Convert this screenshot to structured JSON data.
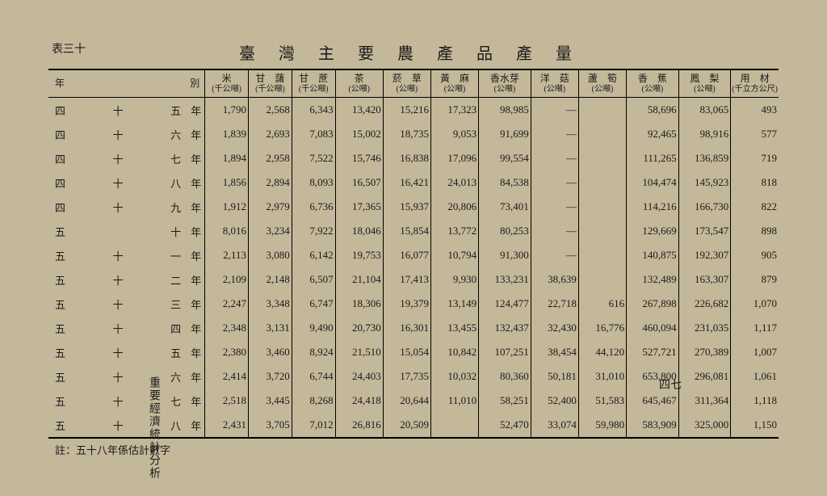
{
  "tableNumber": "表三十",
  "title": "臺 灣 主 要 農 產 品 產 量",
  "columns": [
    {
      "h1": "年",
      "h2": "",
      "cls": "year-col"
    },
    {
      "h1": "別",
      "h2": "",
      "cls": "year-suffix-col"
    },
    {
      "h1": "米",
      "h2": "(千公噸)"
    },
    {
      "h1": "甘　藷",
      "h2": "(千公噸)"
    },
    {
      "h1": "甘　蔗",
      "h2": "(千公噸)"
    },
    {
      "h1": "茶",
      "h2": "(公噸)"
    },
    {
      "h1": "菸　草",
      "h2": "(公噸)"
    },
    {
      "h1": "黃　麻",
      "h2": "(公噸)"
    },
    {
      "h1": "香水芽",
      "h2": "(公噸)"
    },
    {
      "h1": "洋　菇",
      "h2": "(公噸)"
    },
    {
      "h1": "蘆　筍",
      "h2": "(公噸)"
    },
    {
      "h1": "香　蕉",
      "h2": "(公噸)"
    },
    {
      "h1": "鳳　梨",
      "h2": "(公噸)"
    },
    {
      "h1": "用　材",
      "h2": "(千立方公尺)"
    }
  ],
  "rows": [
    {
      "year": [
        "四",
        "十",
        "五",
        "年"
      ],
      "v": [
        "1,790",
        "2,568",
        "6,343",
        "13,420",
        "15,216",
        "17,323",
        "98,985",
        "—",
        "",
        "58,696",
        "83,065",
        "493"
      ]
    },
    {
      "year": [
        "四",
        "十",
        "六",
        "年"
      ],
      "v": [
        "1,839",
        "2,693",
        "7,083",
        "15,002",
        "18,735",
        "9,053",
        "91,699",
        "—",
        "",
        "92,465",
        "98,916",
        "577"
      ]
    },
    {
      "year": [
        "四",
        "十",
        "七",
        "年"
      ],
      "v": [
        "1,894",
        "2,958",
        "7,522",
        "15,746",
        "16,838",
        "17,096",
        "99,554",
        "—",
        "",
        "111,265",
        "136,859",
        "719"
      ]
    },
    {
      "year": [
        "四",
        "十",
        "八",
        "年"
      ],
      "v": [
        "1,856",
        "2,894",
        "8,093",
        "16,507",
        "16,421",
        "24,013",
        "84,538",
        "—",
        "",
        "104,474",
        "145,923",
        "818"
      ]
    },
    {
      "year": [
        "四",
        "十",
        "九",
        "年"
      ],
      "v": [
        "1,912",
        "2,979",
        "6,736",
        "17,365",
        "15,937",
        "20,806",
        "73,401",
        "—",
        "",
        "114,216",
        "166,730",
        "822"
      ]
    },
    {
      "year": [
        "五",
        "",
        "十",
        "年"
      ],
      "v": [
        "8,016",
        "3,234",
        "7,922",
        "18,046",
        "15,854",
        "13,772",
        "80,253",
        "—",
        "",
        "129,669",
        "173,547",
        "898"
      ]
    },
    {
      "year": [
        "五",
        "十",
        "一",
        "年"
      ],
      "v": [
        "2,113",
        "3,080",
        "6,142",
        "19,753",
        "16,077",
        "10,794",
        "91,300",
        "—",
        "",
        "140,875",
        "192,307",
        "905"
      ]
    },
    {
      "year": [
        "五",
        "十",
        "二",
        "年"
      ],
      "v": [
        "2,109",
        "2,148",
        "6,507",
        "21,104",
        "17,413",
        "9,930",
        "133,231",
        "38,639",
        "",
        "132,489",
        "163,307",
        "879"
      ]
    },
    {
      "year": [
        "五",
        "十",
        "三",
        "年"
      ],
      "v": [
        "2,247",
        "3,348",
        "6,747",
        "18,306",
        "19,379",
        "13,149",
        "124,477",
        "22,718",
        "616",
        "267,898",
        "226,682",
        "1,070"
      ]
    },
    {
      "year": [
        "五",
        "十",
        "四",
        "年"
      ],
      "v": [
        "2,348",
        "3,131",
        "9,490",
        "20,730",
        "16,301",
        "13,455",
        "132,437",
        "32,430",
        "16,776",
        "460,094",
        "231,035",
        "1,117"
      ]
    },
    {
      "year": [
        "五",
        "十",
        "五",
        "年"
      ],
      "v": [
        "2,380",
        "3,460",
        "8,924",
        "21,510",
        "15,054",
        "10,842",
        "107,251",
        "38,454",
        "44,120",
        "527,721",
        "270,389",
        "1,007"
      ]
    },
    {
      "year": [
        "五",
        "十",
        "六",
        "年"
      ],
      "v": [
        "2,414",
        "3,720",
        "6,744",
        "24,403",
        "17,735",
        "10,032",
        "80,360",
        "50,181",
        "31,010",
        "653,800",
        "296,081",
        "1,061"
      ]
    },
    {
      "year": [
        "五",
        "十",
        "七",
        "年"
      ],
      "v": [
        "2,518",
        "3,445",
        "8,268",
        "24,418",
        "20,644",
        "11,010",
        "58,251",
        "52,400",
        "51,583",
        "645,467",
        "311,364",
        "1,118"
      ]
    },
    {
      "year": [
        "五",
        "十",
        "八",
        "年"
      ],
      "v": [
        "2,431",
        "3,705",
        "7,012",
        "26,816",
        "20,509",
        "",
        "52,470",
        "33,074",
        "59,980",
        "583,909",
        "325,000",
        "1,150"
      ]
    }
  ],
  "footnote": "註：五十八年係估計數字",
  "bottomLeft": "重要經濟統計分析",
  "bottomRight": "四七",
  "style": {
    "background": "#c4b89a",
    "text": "#1a1a1a",
    "border": "#000000",
    "fontsize_body": 13,
    "fontsize_title": 20
  }
}
